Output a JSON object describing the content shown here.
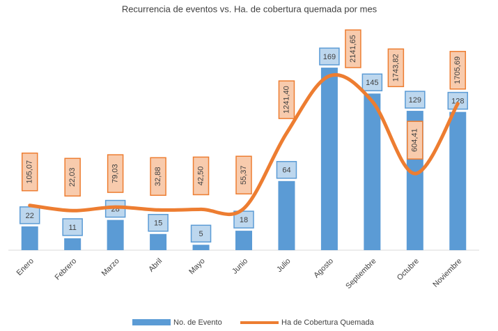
{
  "chart_data": {
    "type": "combo",
    "title": "Recurrencia de eventos vs. Ha. de cobertura quemada por mes",
    "categories": [
      "Enero",
      "Febrero",
      "Marzo",
      "Abril",
      "Mayo",
      "Junio",
      "Julio",
      "Agosto",
      "Septiembre",
      "Octubre",
      "Noviembre"
    ],
    "series": [
      {
        "name": "No. de Evento",
        "type": "bar",
        "color": "#5b9bd5",
        "values": [
          22,
          11,
          28,
          15,
          5,
          18,
          64,
          169,
          145,
          129,
          128
        ]
      },
      {
        "name": "Ha de Cobertura Quemada",
        "type": "line",
        "color": "#ed7d31",
        "axis": "y2",
        "values": [
          105.07,
          22.03,
          79.03,
          32.88,
          42.5,
          55.37,
          1241.4,
          2141.65,
          1743.82,
          604.41,
          1705.69
        ],
        "value_labels": [
          "105,07",
          "22,03",
          "79,03",
          "32,88",
          "42,50",
          "55,37",
          "1241,40",
          "2141,65",
          "1743,82",
          "604,41",
          "1705,69"
        ]
      }
    ],
    "ylim": [
      0,
      200
    ],
    "y2lim": [
      -600,
      2800
    ],
    "legend": "bottom"
  }
}
